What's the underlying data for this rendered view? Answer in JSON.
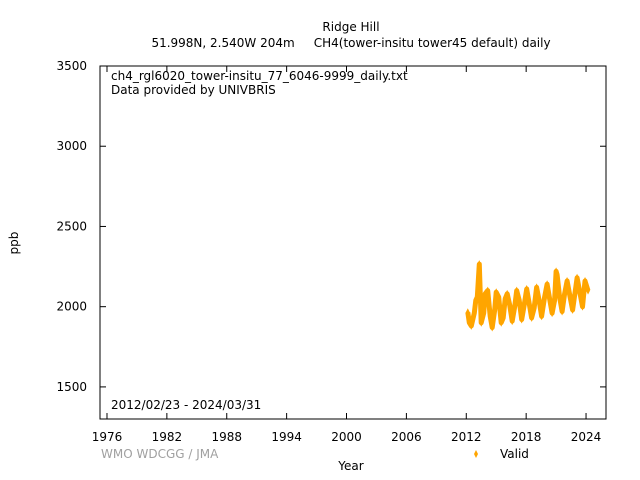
{
  "chart_data": {
    "type": "scatter",
    "title": "Ridge Hill",
    "subtitle": "51.998N, 2.540W 204m     CH4(tower-insitu tower45 default) daily",
    "file_label": "ch4_rgl6020_tower-insitu_77_6046-9999_daily.txt",
    "provider": "Data provided by UNIVBRIS",
    "period": "2012/02/23 - 2024/03/31",
    "xlabel": "Year",
    "ylabel": "ppb",
    "xlim": [
      1975.3,
      2026.0
    ],
    "ylim": [
      1300,
      3500
    ],
    "xticks": [
      1976,
      1982,
      1988,
      1994,
      2000,
      2006,
      2012,
      2018,
      2024
    ],
    "yticks": [
      1500,
      2000,
      2500,
      3000,
      3500
    ],
    "grid": false,
    "legend_position": "bottom-right",
    "series": [
      {
        "name": "Valid",
        "color": "#ffa500",
        "marker": "diamond",
        "points": [
          [
            2012.15,
            1965
          ],
          [
            2012.3,
            1900
          ],
          [
            2012.5,
            1880
          ],
          [
            2012.8,
            1960
          ],
          [
            2012.95,
            2040
          ],
          [
            2013.1,
            2060
          ],
          [
            2013.3,
            2265
          ],
          [
            2013.5,
            1900
          ],
          [
            2013.75,
            1960
          ],
          [
            2013.9,
            2080
          ],
          [
            2014.15,
            2100
          ],
          [
            2014.4,
            1940
          ],
          [
            2014.6,
            1870
          ],
          [
            2014.85,
            1980
          ],
          [
            2015.0,
            2090
          ],
          [
            2015.25,
            2060
          ],
          [
            2015.5,
            1900
          ],
          [
            2015.7,
            1930
          ],
          [
            2015.9,
            2050
          ],
          [
            2016.1,
            2080
          ],
          [
            2016.35,
            2010
          ],
          [
            2016.6,
            1910
          ],
          [
            2016.85,
            2000
          ],
          [
            2017.05,
            2100
          ],
          [
            2017.3,
            2040
          ],
          [
            2017.55,
            1920
          ],
          [
            2017.8,
            2010
          ],
          [
            2018.05,
            2110
          ],
          [
            2018.3,
            2020
          ],
          [
            2018.55,
            1930
          ],
          [
            2018.8,
            1990
          ],
          [
            2019.05,
            2120
          ],
          [
            2019.3,
            2040
          ],
          [
            2019.55,
            1940
          ],
          [
            2019.85,
            2060
          ],
          [
            2020.1,
            2140
          ],
          [
            2020.35,
            2050
          ],
          [
            2020.6,
            1960
          ],
          [
            2020.85,
            2040
          ],
          [
            2021.0,
            2220
          ],
          [
            2021.1,
            2200
          ],
          [
            2021.35,
            2060
          ],
          [
            2021.6,
            1970
          ],
          [
            2021.85,
            2080
          ],
          [
            2022.1,
            2160
          ],
          [
            2022.4,
            2060
          ],
          [
            2022.65,
            1980
          ],
          [
            2022.9,
            2090
          ],
          [
            2023.1,
            2180
          ],
          [
            2023.4,
            2080
          ],
          [
            2023.65,
            2000
          ],
          [
            2023.9,
            2160
          ],
          [
            2024.2,
            2100
          ]
        ]
      }
    ]
  },
  "footer": {
    "credit": "WMO WDCGG / JMA"
  }
}
